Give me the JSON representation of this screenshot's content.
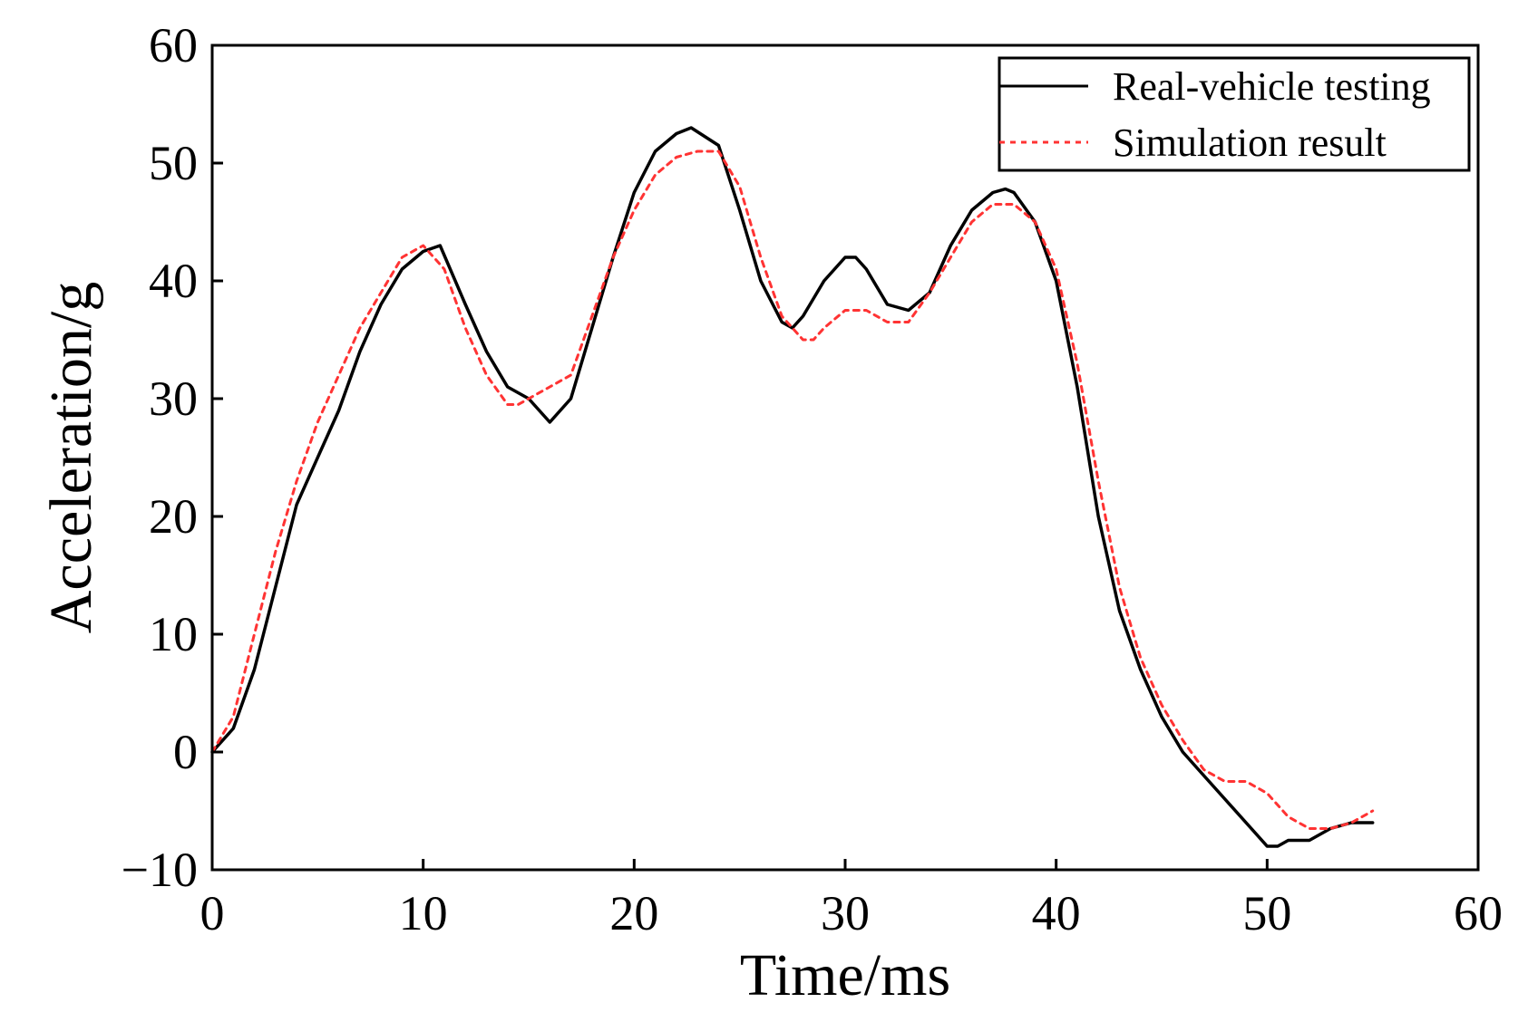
{
  "chart_data": {
    "type": "line",
    "title": "",
    "xlabel": "Time/ms",
    "ylabel": "Acceleration/g",
    "xlim": [
      0,
      60
    ],
    "ylim": [
      -10,
      60
    ],
    "xticks": [
      0,
      10,
      20,
      30,
      40,
      50,
      60
    ],
    "yticks": [
      -10,
      0,
      10,
      20,
      30,
      40,
      50,
      60
    ],
    "xtick_labels": [
      "0",
      "10",
      "20",
      "30",
      "40",
      "50",
      "60"
    ],
    "ytick_labels": [
      "−10",
      "0",
      "10",
      "20",
      "30",
      "40",
      "50",
      "60"
    ],
    "grid": false,
    "legend_position": "top-right",
    "series": [
      {
        "name": "Real-vehicle testing",
        "color": "#000000",
        "style": "solid",
        "x": [
          0,
          1,
          2,
          3,
          4,
          5,
          6,
          7,
          8,
          9,
          10,
          10.8,
          12,
          13,
          14,
          15,
          16,
          17,
          18,
          19,
          20,
          21,
          22,
          22.7,
          24,
          25,
          26,
          27,
          27.5,
          28,
          29,
          30,
          30.5,
          31,
          32,
          33,
          34,
          35,
          36,
          37,
          37.6,
          38,
          39,
          40,
          41,
          42,
          43,
          44,
          45,
          46,
          47,
          48,
          49,
          50,
          50.5,
          51,
          52,
          53,
          54,
          55
        ],
        "y": [
          0,
          2,
          7,
          14,
          21,
          25,
          29,
          34,
          38,
          41,
          42.5,
          43,
          38,
          34,
          31,
          30,
          28,
          30,
          36,
          42,
          47.5,
          51,
          52.5,
          53,
          51.5,
          46,
          40,
          36.5,
          36,
          37,
          40,
          42,
          42,
          41,
          38,
          37.5,
          39,
          43,
          46,
          47.5,
          47.8,
          47.5,
          45,
          40,
          31,
          20,
          12,
          7,
          3,
          0,
          -2,
          -4,
          -6,
          -8,
          -8,
          -7.5,
          -7.5,
          -6.5,
          -6,
          -6
        ]
      },
      {
        "name": "Simulation result",
        "color": "#ff3333",
        "style": "dotted",
        "x": [
          0,
          1,
          2,
          3,
          4,
          5,
          6,
          7,
          8,
          9,
          10,
          11,
          12,
          13,
          14,
          14.5,
          15,
          16,
          17,
          18,
          19,
          20,
          21,
          22,
          23,
          24,
          25,
          26,
          27,
          28,
          28.5,
          29,
          30,
          31,
          32,
          33,
          34,
          35,
          36,
          37,
          38,
          39,
          40,
          41,
          42,
          43,
          44,
          45,
          46,
          47,
          48,
          49,
          50,
          51,
          52,
          53,
          54,
          55
        ],
        "y": [
          0,
          3,
          10,
          17,
          23,
          28,
          32,
          36,
          39,
          42,
          43,
          41,
          36,
          32,
          29.5,
          29.5,
          30,
          31,
          32,
          37,
          42,
          46,
          49,
          50.5,
          51,
          51,
          48,
          42,
          37,
          35,
          35,
          36,
          37.5,
          37.5,
          36.5,
          36.5,
          39,
          42,
          45,
          46.5,
          46.5,
          45,
          41,
          33,
          23,
          14,
          8,
          4,
          1,
          -1.5,
          -2.5,
          -2.5,
          -3.5,
          -5.5,
          -6.5,
          -6.5,
          -6,
          -5
        ]
      }
    ]
  }
}
